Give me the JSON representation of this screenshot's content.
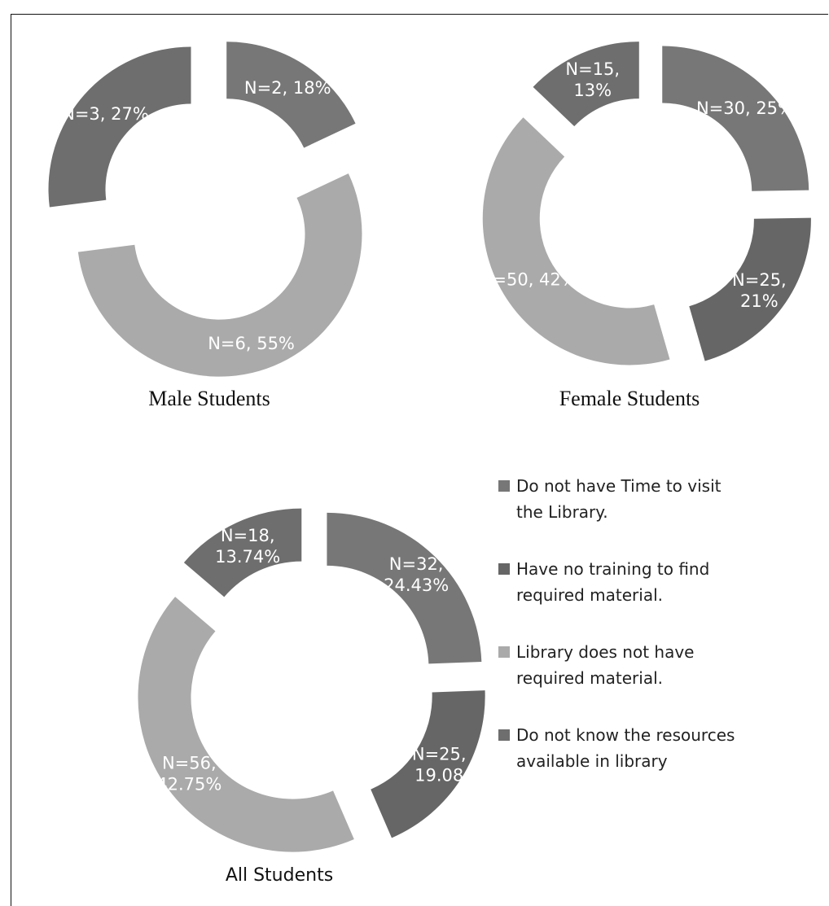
{
  "chart_data": [
    {
      "type": "pie",
      "title": "Male Students",
      "categories": [
        "Do not have Time to visit the Library.",
        "Have no training to find required material.",
        "Library does not have required material.",
        "Do not know the resources available in library"
      ],
      "slices": [
        {
          "category": "Do not have Time to visit the Library.",
          "n": 2,
          "percent": 18,
          "label": "N=2, 18%"
        },
        {
          "category": "Have no training to find required material.",
          "n": 0,
          "percent": 0,
          "label": ""
        },
        {
          "category": "Library does not have required material.",
          "n": 6,
          "percent": 55,
          "label": "N=6, 55%"
        },
        {
          "category": "Do not know the resources available in library",
          "n": 3,
          "percent": 27,
          "label": "N=3, 27%"
        }
      ]
    },
    {
      "type": "pie",
      "title": "Female Students",
      "categories": [
        "Do not have Time to visit the Library.",
        "Have no training to find required material.",
        "Library does not have required material.",
        "Do not know the resources available in library"
      ],
      "slices": [
        {
          "category": "Do not have Time to visit the Library.",
          "n": 30,
          "percent": 25,
          "label": "N=30, 25%"
        },
        {
          "category": "Have no training to find required material.",
          "n": 25,
          "percent": 21,
          "label": "N=25, 21%"
        },
        {
          "category": "Library does not have required material.",
          "n": 50,
          "percent": 42,
          "label": "N=50, 42%"
        },
        {
          "category": "Do not know the resources available in library",
          "n": 15,
          "percent": 13,
          "label": "N=15, 13%"
        }
      ]
    },
    {
      "type": "pie",
      "title": "All Students",
      "categories": [
        "Do not have Time to visit the Library.",
        "Have no training to find required material.",
        "Library does not have required material.",
        "Do not know the resources available in library"
      ],
      "slices": [
        {
          "category": "Do not have Time to visit the Library.",
          "n": 32,
          "percent": 24.43,
          "label": "N=32, 24.43%"
        },
        {
          "category": "Have no training to find required material.",
          "n": 25,
          "percent": 19.08,
          "label": "N=25, 19.08"
        },
        {
          "category": "Library does not have required material.",
          "n": 56,
          "percent": 42.75,
          "label": "N=56, 42.75%"
        },
        {
          "category": "Do not know the resources available in library",
          "n": 18,
          "percent": 13.74,
          "label": "N=18, 13.74%"
        }
      ]
    }
  ],
  "legend": {
    "placement": "right",
    "items": [
      {
        "line1": "Do not have Time to visit",
        "line2": "the Library.",
        "color": "#777777"
      },
      {
        "line1": "Have no training to find",
        "line2": "required material.",
        "color": "#666666"
      },
      {
        "line1": "Library does not have",
        "line2": "required material.",
        "color": "#aaaaaa"
      },
      {
        "line1": "Do not know the resources",
        "line2": "available in library",
        "color": "#6e6e6e"
      }
    ]
  },
  "colors": {
    "time": "#777777",
    "training": "#666666",
    "material": "#aaaaaa",
    "resources": "#6e6e6e"
  }
}
